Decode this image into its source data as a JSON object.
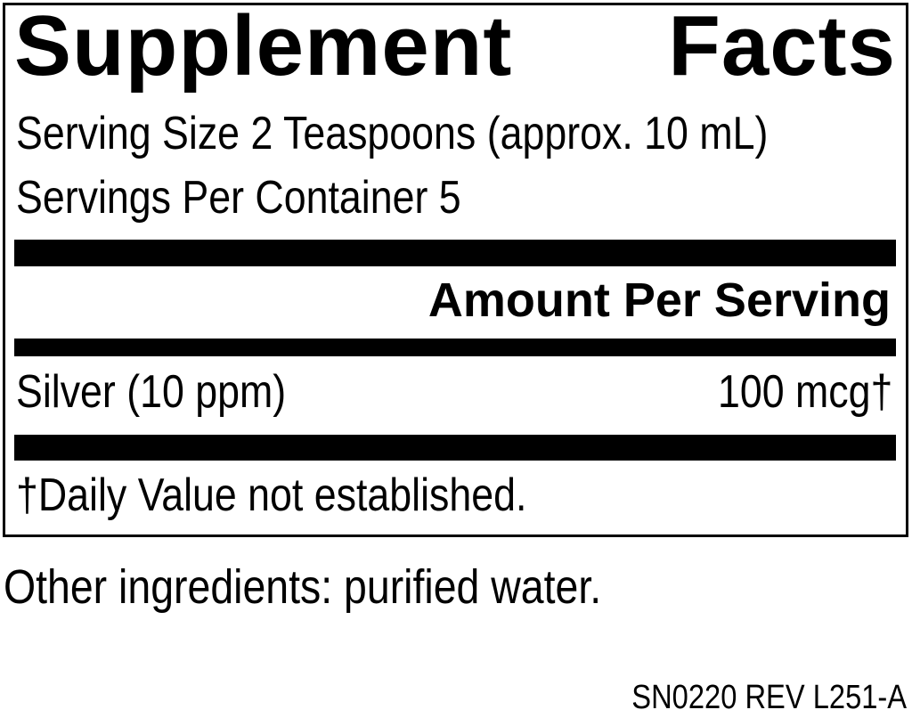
{
  "label": {
    "title_words": [
      "Supplement",
      "Facts"
    ],
    "serving_size": "Serving Size 2 Teaspoons (approx. 10 mL)",
    "servings_per_container": "Servings Per Container 5",
    "amount_header": "Amount Per Serving",
    "rows": [
      {
        "name": "Silver (10 ppm)",
        "amount": "100 mcg†"
      }
    ],
    "footnote": "†Daily Value not established."
  },
  "other_ingredients": "Other ingredients: purified water.",
  "code": "SN0220 REV L251-A"
}
